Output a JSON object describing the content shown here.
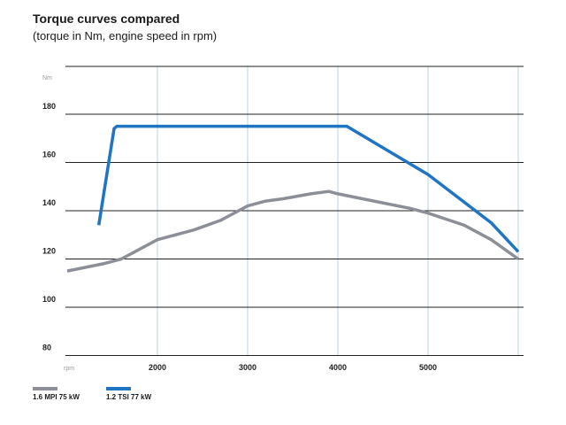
{
  "chart_data": {
    "type": "line",
    "title": "Torque curves compared",
    "subtitle": "(torque in Nm, engine speed in rpm)",
    "ylabel": "Nm",
    "xlabel": "rpm",
    "xlim": [
      1000,
      6000
    ],
    "ylim": [
      80,
      190
    ],
    "x_ticks": [
      2000,
      3000,
      4000,
      5000
    ],
    "y_ticks": [
      80,
      100,
      120,
      140,
      160,
      180
    ],
    "grid": true,
    "legend_position": "bottom-left",
    "series": [
      {
        "name": "1.6 MPI 75 kW",
        "color": "#8c8f98",
        "x": [
          1000,
          1400,
          1600,
          2000,
          2400,
          2700,
          3000,
          3200,
          3400,
          3700,
          3900,
          4000,
          4400,
          4800,
          5000,
          5400,
          5700,
          6000
        ],
        "y": [
          115,
          118,
          120,
          128,
          132,
          136,
          142,
          144,
          145,
          147,
          148,
          147,
          144,
          141,
          139,
          134,
          128,
          120
        ]
      },
      {
        "name": "1.2 TSI 77 kW",
        "color": "#1f74c4",
        "x": [
          1350,
          1520,
          1550,
          4000,
          4100,
          5000,
          5700,
          6000
        ],
        "y": [
          134,
          174,
          175,
          175,
          175,
          155,
          135,
          123
        ]
      }
    ]
  }
}
